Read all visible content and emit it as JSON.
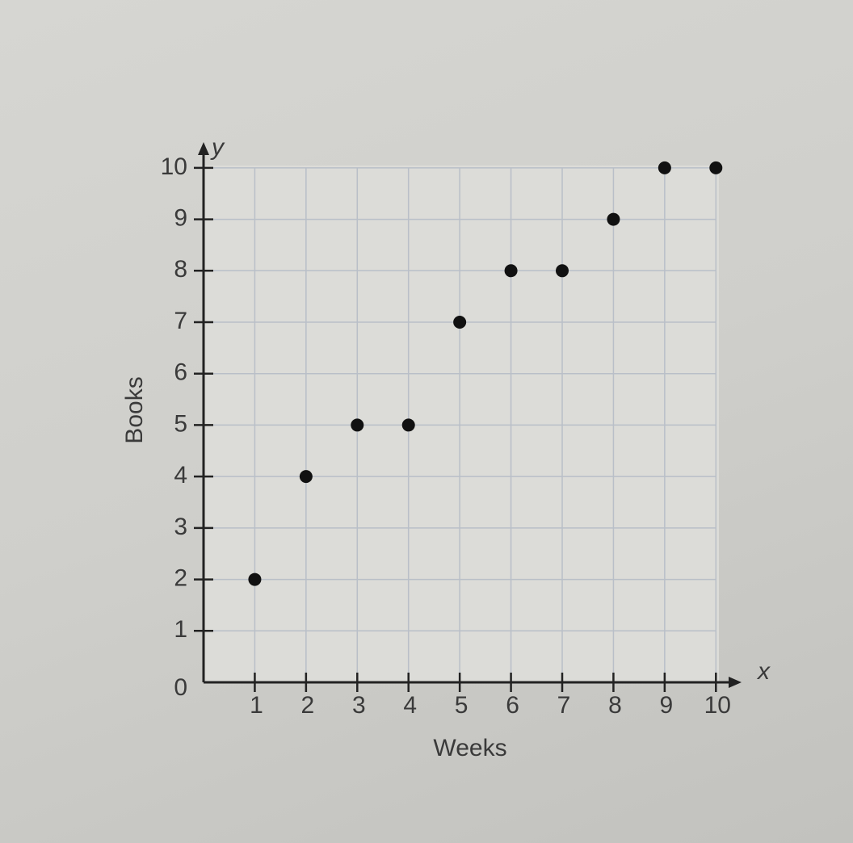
{
  "chart_data": {
    "type": "scatter",
    "x_axis_label": "Weeks",
    "y_axis_label": "Books",
    "x_var": "x",
    "y_var": "y",
    "x": [
      1,
      2,
      3,
      4,
      5,
      6,
      7,
      8,
      9,
      10
    ],
    "series": [
      {
        "color": "#111111",
        "values": [
          2,
          4,
          5,
          5,
          7,
          8,
          8,
          9,
          10,
          10
        ]
      }
    ],
    "xlim": [
      0,
      10.5
    ],
    "ylim": [
      0,
      10.5
    ],
    "xticks": [
      1,
      2,
      3,
      4,
      5,
      6,
      7,
      8,
      9,
      10
    ],
    "yticks": [
      0,
      1,
      2,
      3,
      4,
      5,
      6,
      7,
      8,
      9,
      10
    ],
    "grid": true
  }
}
